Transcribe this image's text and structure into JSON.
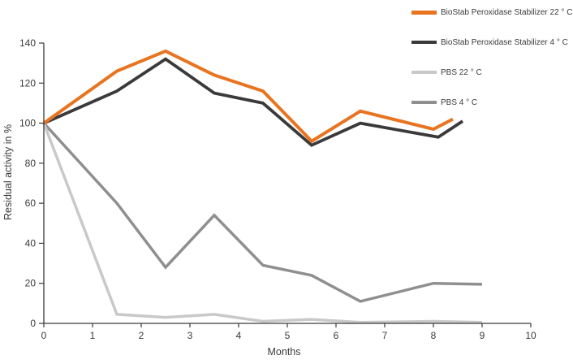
{
  "chart_data": {
    "type": "line",
    "title": "",
    "xlabel": "Months",
    "ylabel": "Residual activity in %",
    "xlim": [
      0,
      10
    ],
    "ylim": [
      0,
      140
    ],
    "x_ticks": [
      0,
      1,
      2,
      3,
      4,
      5,
      6,
      7,
      8,
      9,
      10
    ],
    "y_ticks": [
      0,
      20,
      40,
      60,
      80,
      100,
      120,
      140
    ],
    "grid": false,
    "legend_position": "top-right",
    "axis_color": "#3a3a3a",
    "series": [
      {
        "name": "BioStab Peroxidase Stabilizer 22 ° C",
        "color": "#e8741f",
        "stroke_width": 4,
        "x": [
          0,
          1.5,
          2.5,
          3.5,
          4.5,
          5.5,
          6.5,
          8,
          8.4
        ],
        "y": [
          100,
          126,
          136,
          124,
          116,
          91,
          106,
          97,
          102
        ]
      },
      {
        "name": "BioStab Peroxidase Stabilizer 4 ° C",
        "color": "#3a3a3a",
        "stroke_width": 3.8,
        "x": [
          0,
          1.5,
          2.5,
          3.5,
          4.5,
          5.5,
          6.5,
          8.1,
          8.6
        ],
        "y": [
          100,
          116,
          132,
          115,
          110,
          89,
          100,
          93,
          101
        ]
      },
      {
        "name": "PBS 22 ° C",
        "color": "#c9c9c9",
        "stroke_width": 3.5,
        "x": [
          0,
          1.5,
          2.5,
          3.5,
          4.5,
          5.5,
          6.5,
          8,
          9
        ],
        "y": [
          100,
          4.5,
          3,
          4.5,
          1,
          2,
          0.5,
          1,
          0.5
        ]
      },
      {
        "name": "PBS 4 ° C",
        "color": "#8f8f8f",
        "stroke_width": 3.5,
        "x": [
          0,
          1.5,
          2.5,
          3.5,
          4.5,
          5.5,
          6.5,
          8,
          9
        ],
        "y": [
          100,
          60,
          28,
          54,
          29,
          24,
          11,
          20,
          19.5
        ]
      }
    ]
  }
}
